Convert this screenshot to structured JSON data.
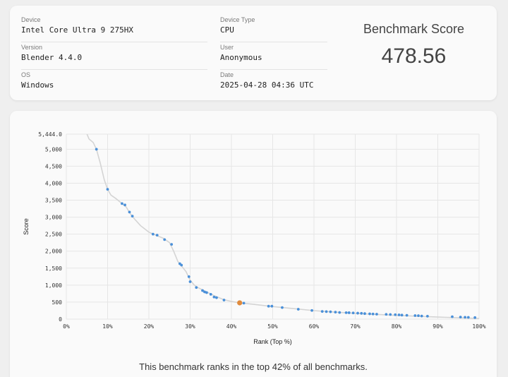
{
  "info": {
    "device_label": "Device",
    "device": "Intel Core Ultra 9 275HX",
    "version_label": "Version",
    "version": "Blender 4.4.0",
    "os_label": "OS",
    "os": "Windows",
    "device_type_label": "Device Type",
    "device_type": "CPU",
    "user_label": "User",
    "user": "Anonymous",
    "date_label": "Date",
    "date": "2025-04-28 04:36 UTC"
  },
  "score": {
    "title": "Benchmark Score",
    "value": "478.56"
  },
  "caption": "This benchmark ranks in the top 42% of all benchmarks.",
  "colors": {
    "point": "#4a90d9",
    "highlight": "#e08a3c",
    "curve": "#d4d4d4",
    "grid": "#e6e6e6"
  },
  "chart_data": {
    "type": "scatter",
    "xlabel": "Rank (Top %)",
    "ylabel": "Score",
    "xlim": [
      0,
      100
    ],
    "ylim": [
      0,
      5444
    ],
    "grid": true,
    "x_ticks": [
      {
        "value": 0,
        "label": "0%"
      },
      {
        "value": 10,
        "label": "10%"
      },
      {
        "value": 20,
        "label": "20%"
      },
      {
        "value": 30,
        "label": "30%"
      },
      {
        "value": 40,
        "label": "40%"
      },
      {
        "value": 50,
        "label": "50%"
      },
      {
        "value": 60,
        "label": "60%"
      },
      {
        "value": 70,
        "label": "70%"
      },
      {
        "value": 80,
        "label": "80%"
      },
      {
        "value": 90,
        "label": "90%"
      },
      {
        "value": 100,
        "label": "100%"
      }
    ],
    "y_ticks": [
      {
        "value": 0,
        "label": "0"
      },
      {
        "value": 500,
        "label": "500"
      },
      {
        "value": 1000,
        "label": "1,000"
      },
      {
        "value": 1500,
        "label": "1,500"
      },
      {
        "value": 2000,
        "label": "2,000"
      },
      {
        "value": 2500,
        "label": "2,500"
      },
      {
        "value": 3000,
        "label": "3,000"
      },
      {
        "value": 3500,
        "label": "3,500"
      },
      {
        "value": 4000,
        "label": "4,000"
      },
      {
        "value": 4500,
        "label": "4,500"
      },
      {
        "value": 5000,
        "label": "5,000"
      },
      {
        "value": 5444,
        "label": "5,444.0"
      }
    ],
    "curve": [
      [
        5.0,
        5444
      ],
      [
        5.5,
        5300
      ],
      [
        6.5,
        5200
      ],
      [
        7.3,
        5000
      ],
      [
        8.2,
        4600
      ],
      [
        9.2,
        4100
      ],
      [
        10.0,
        3820
      ],
      [
        10.8,
        3650
      ],
      [
        12.0,
        3550
      ],
      [
        13.5,
        3400
      ],
      [
        14.5,
        3300
      ],
      [
        15.5,
        3100
      ],
      [
        16.5,
        2950
      ],
      [
        18.0,
        2750
      ],
      [
        20.0,
        2560
      ],
      [
        21.5,
        2480
      ],
      [
        23.5,
        2380
      ],
      [
        25.0,
        2250
      ],
      [
        26.0,
        2000
      ],
      [
        27.0,
        1700
      ],
      [
        28.0,
        1550
      ],
      [
        29.0,
        1400
      ],
      [
        30.0,
        1150
      ],
      [
        31.0,
        1000
      ],
      [
        32.0,
        920
      ],
      [
        34.0,
        800
      ],
      [
        36.0,
        680
      ],
      [
        38.0,
        580
      ],
      [
        40.0,
        520
      ],
      [
        42.0,
        478
      ],
      [
        45.0,
        440
      ],
      [
        50.0,
        370
      ],
      [
        55.0,
        310
      ],
      [
        60.0,
        250
      ],
      [
        65.0,
        205
      ],
      [
        70.0,
        170
      ],
      [
        75.0,
        140
      ],
      [
        80.0,
        110
      ],
      [
        85.0,
        85
      ],
      [
        90.0,
        60
      ],
      [
        95.0,
        40
      ],
      [
        100.0,
        20
      ]
    ],
    "points": [
      [
        7.3,
        5000
      ],
      [
        10.0,
        3820
      ],
      [
        13.5,
        3400
      ],
      [
        14.2,
        3360
      ],
      [
        15.3,
        3150
      ],
      [
        16.0,
        3030
      ],
      [
        21.0,
        2500
      ],
      [
        22.0,
        2470
      ],
      [
        23.8,
        2340
      ],
      [
        25.5,
        2200
      ],
      [
        27.5,
        1630
      ],
      [
        27.9,
        1590
      ],
      [
        29.7,
        1250
      ],
      [
        30.0,
        1100
      ],
      [
        31.5,
        930
      ],
      [
        33.0,
        840
      ],
      [
        33.5,
        800
      ],
      [
        34.0,
        780
      ],
      [
        35.0,
        730
      ],
      [
        35.8,
        650
      ],
      [
        36.4,
        630
      ],
      [
        38.2,
        560
      ],
      [
        43.0,
        470
      ],
      [
        49.0,
        380
      ],
      [
        49.8,
        380
      ],
      [
        52.3,
        340
      ],
      [
        56.2,
        290
      ],
      [
        59.5,
        255
      ],
      [
        62.0,
        225
      ],
      [
        63.0,
        220
      ],
      [
        64.0,
        215
      ],
      [
        65.2,
        205
      ],
      [
        66.2,
        195
      ],
      [
        67.8,
        190
      ],
      [
        68.5,
        188
      ],
      [
        69.5,
        182
      ],
      [
        70.6,
        175
      ],
      [
        71.5,
        170
      ],
      [
        72.3,
        162
      ],
      [
        73.5,
        155
      ],
      [
        74.3,
        150
      ],
      [
        75.2,
        145
      ],
      [
        77.5,
        140
      ],
      [
        78.5,
        135
      ],
      [
        79.7,
        130
      ],
      [
        80.6,
        125
      ],
      [
        81.3,
        118
      ],
      [
        82.5,
        112
      ],
      [
        84.5,
        103
      ],
      [
        85.3,
        100
      ],
      [
        86.1,
        90
      ],
      [
        87.5,
        85
      ],
      [
        93.5,
        70
      ],
      [
        95.5,
        60
      ],
      [
        96.6,
        55
      ],
      [
        97.4,
        52
      ],
      [
        99.0,
        45
      ]
    ],
    "highlight": {
      "x": 42.0,
      "y": 478.56
    }
  }
}
